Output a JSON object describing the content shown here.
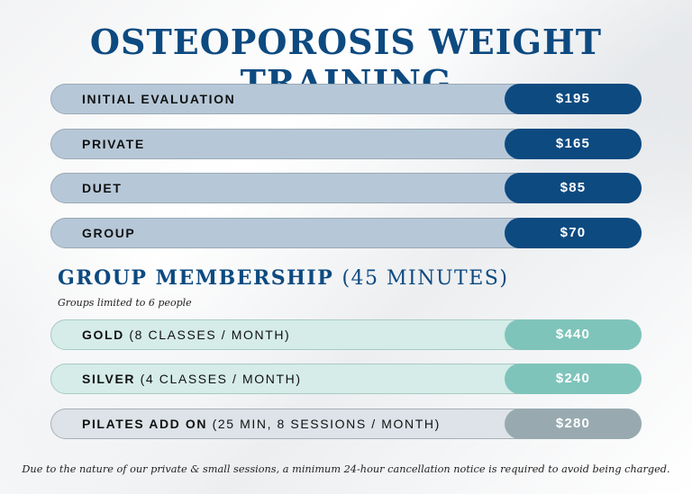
{
  "title": "OSTEOPOROSIS WEIGHT TRAINING",
  "sessions": [
    {
      "label": "INITIAL EVALUATION",
      "price": "$195"
    },
    {
      "label": "PRIVATE",
      "price": "$165"
    },
    {
      "label": "DUET",
      "price": "$85"
    },
    {
      "label": "GROUP",
      "price": "$70"
    }
  ],
  "membership": {
    "heading": "GROUP MEMBERSHIP",
    "heading_paren": "(45 MINUTES)",
    "note": "Groups limited to 6 people",
    "plans": [
      {
        "name": "GOLD",
        "detail": "(8 CLASSES / MONTH)",
        "price": "$440"
      },
      {
        "name": "SILVER",
        "detail": "(4 CLASSES / MONTH)",
        "price": "$240"
      },
      {
        "name": "PILATES ADD ON",
        "detail": "(25 MIN, 8 SESSIONS / MONTH)",
        "price": "$280"
      }
    ]
  },
  "footer": "Due to the nature of our private & small sessions, a minimum 24-hour cancellation notice is required to avoid being charged.",
  "colors": {
    "navy": "#0d4a80",
    "light_blue": "#b6c8d8",
    "teal": "#7fc4bb",
    "light_teal": "#d5ece8",
    "grey": "#98aab0",
    "light_grey": "#dde3e8"
  }
}
